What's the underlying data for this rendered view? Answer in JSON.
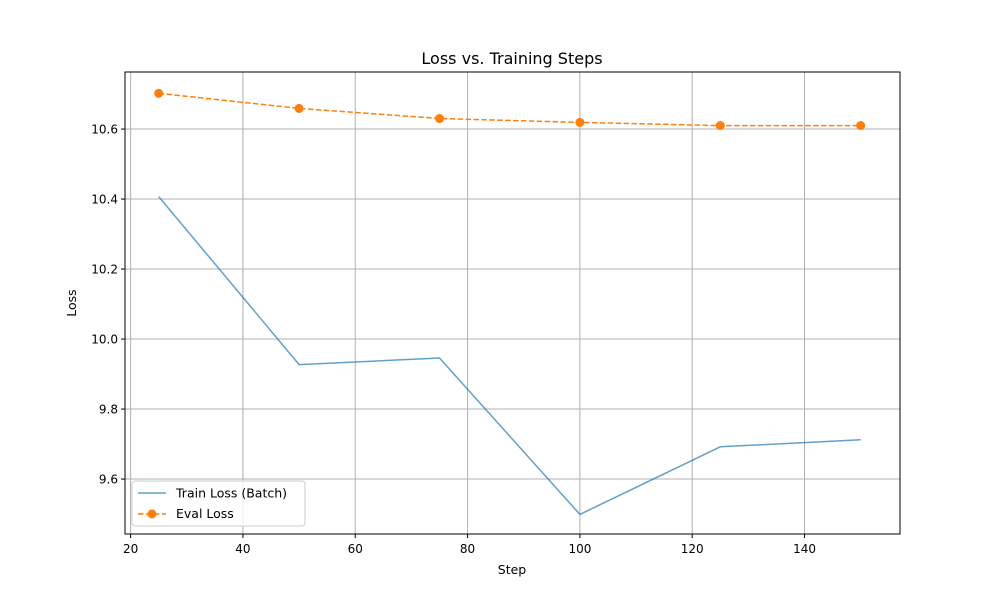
{
  "chart_data": {
    "type": "line",
    "title": "Loss vs. Training Steps",
    "xlabel": "Step",
    "ylabel": "Loss",
    "xlim": [
      19,
      157
    ],
    "ylim": [
      9.443,
      10.763
    ],
    "xticks": [
      20,
      40,
      60,
      80,
      100,
      120,
      140
    ],
    "yticks": [
      9.6,
      9.8,
      10.0,
      10.2,
      10.4,
      10.6
    ],
    "xtick_labels": [
      "20",
      "40",
      "60",
      "80",
      "100",
      "120",
      "140"
    ],
    "ytick_labels": [
      "9.6",
      "9.8",
      "10.0",
      "10.2",
      "10.4",
      "10.6"
    ],
    "grid": true,
    "legend_position": "lower-left",
    "series": [
      {
        "name": "Train Loss (Batch)",
        "color": "#1f77b4",
        "style": "solid",
        "marker": "none",
        "x": [
          25,
          50,
          75,
          100,
          125,
          150
        ],
        "y": [
          10.407,
          9.927,
          9.946,
          9.499,
          9.692,
          9.712
        ]
      },
      {
        "name": "Eval Loss",
        "color": "#ff7f0e",
        "style": "dashed",
        "marker": "circle",
        "x": [
          25,
          50,
          75,
          100,
          125,
          150
        ],
        "y": [
          10.702,
          10.659,
          10.63,
          10.619,
          10.61,
          10.61
        ]
      }
    ]
  }
}
